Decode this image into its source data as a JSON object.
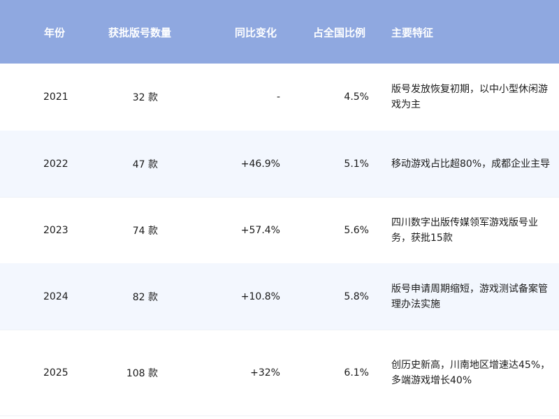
{
  "table": {
    "columns": [
      "年份",
      "获批版号数量",
      "同比变化",
      "占全国比例",
      "主要特征"
    ],
    "rows": [
      {
        "year": "2021",
        "count": "32 款",
        "change": "-",
        "ratio": "4.5%",
        "feature": "版号发放恢复初期，以中小型休闲游戏为主"
      },
      {
        "year": "2022",
        "count": "47 款",
        "change": "+46.9%",
        "ratio": "5.1%",
        "feature": "移动游戏占比超80%，成都企业主导"
      },
      {
        "year": "2023",
        "count": "74 款",
        "change": "+57.4%",
        "ratio": "5.6%",
        "feature": "四川数字出版传媒领军游戏版号业务，获批15款"
      },
      {
        "year": "2024",
        "count": "82 款",
        "change": "+10.8%",
        "ratio": "5.8%",
        "feature": "版号申请周期缩短，游戏测试备案管理办法实施"
      },
      {
        "year": "2025",
        "count": "108 款",
        "change": "+32%",
        "ratio": "6.1%",
        "feature": "创历史新高，川南地区增速达45%，多端游戏增长40%"
      }
    ]
  },
  "colors": {
    "header_bg": "#8fa8e0",
    "alt_row_bg": "#f3f7fe"
  }
}
